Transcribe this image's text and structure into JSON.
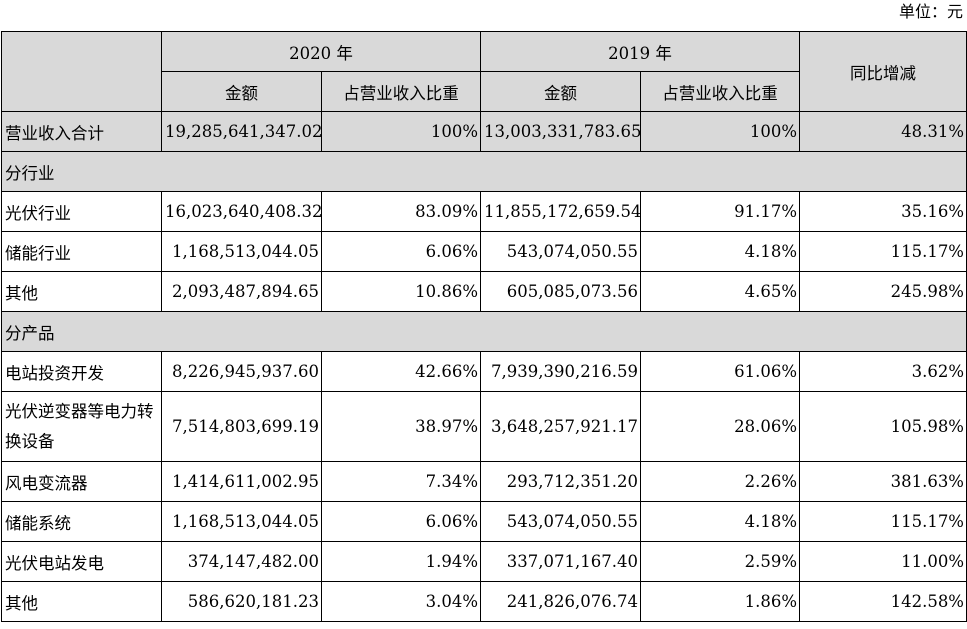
{
  "unit_label": "单位：元",
  "header": {
    "year_2020": "2020 年",
    "year_2019": "2019 年",
    "yoy": "同比增减",
    "amount_2020": "金额",
    "ratio_2020": "占营业收入比重",
    "amount_2019": "金额",
    "ratio_2019": "占营业收入比重"
  },
  "total": {
    "label": "营业收入合计",
    "amount_2020": "19,285,641,347.02",
    "ratio_2020": "100%",
    "amount_2019": "13,003,331,783.65",
    "ratio_2019": "100%",
    "yoy": "48.31%"
  },
  "by_industry": {
    "section_label": "分行业",
    "rows": [
      {
        "label": "光伏行业",
        "amount_2020": "16,023,640,408.32",
        "ratio_2020": "83.09%",
        "amount_2019": "11,855,172,659.54",
        "ratio_2019": "91.17%",
        "yoy": "35.16%"
      },
      {
        "label": "储能行业",
        "amount_2020": "1,168,513,044.05",
        "ratio_2020": "6.06%",
        "amount_2019": "543,074,050.55",
        "ratio_2019": "4.18%",
        "yoy": "115.17%"
      },
      {
        "label": "其他",
        "amount_2020": "2,093,487,894.65",
        "ratio_2020": "10.86%",
        "amount_2019": "605,085,073.56",
        "ratio_2019": "4.65%",
        "yoy": "245.98%"
      }
    ]
  },
  "by_product": {
    "section_label": "分产品",
    "rows": [
      {
        "label": "电站投资开发",
        "amount_2020": "8,226,945,937.60",
        "ratio_2020": "42.66%",
        "amount_2019": "7,939,390,216.59",
        "ratio_2019": "61.06%",
        "yoy": "3.62%"
      },
      {
        "label": "光伏逆变器等电力转换设备",
        "amount_2020": "7,514,803,699.19",
        "ratio_2020": "38.97%",
        "amount_2019": "3,648,257,921.17",
        "ratio_2019": "28.06%",
        "yoy": "105.98%"
      },
      {
        "label": "风电变流器",
        "amount_2020": "1,414,611,002.95",
        "ratio_2020": "7.34%",
        "amount_2019": "293,712,351.20",
        "ratio_2019": "2.26%",
        "yoy": "381.63%"
      },
      {
        "label": "储能系统",
        "amount_2020": "1,168,513,044.05",
        "ratio_2020": "6.06%",
        "amount_2019": "543,074,050.55",
        "ratio_2019": "4.18%",
        "yoy": "115.17%"
      },
      {
        "label": "光伏电站发电",
        "amount_2020": "374,147,482.00",
        "ratio_2020": "1.94%",
        "amount_2019": "337,071,167.40",
        "ratio_2019": "2.59%",
        "yoy": "11.00%"
      },
      {
        "label": "其他",
        "amount_2020": "586,620,181.23",
        "ratio_2020": "3.04%",
        "amount_2019": "241,826,076.74",
        "ratio_2019": "1.86%",
        "yoy": "142.58%"
      }
    ]
  }
}
